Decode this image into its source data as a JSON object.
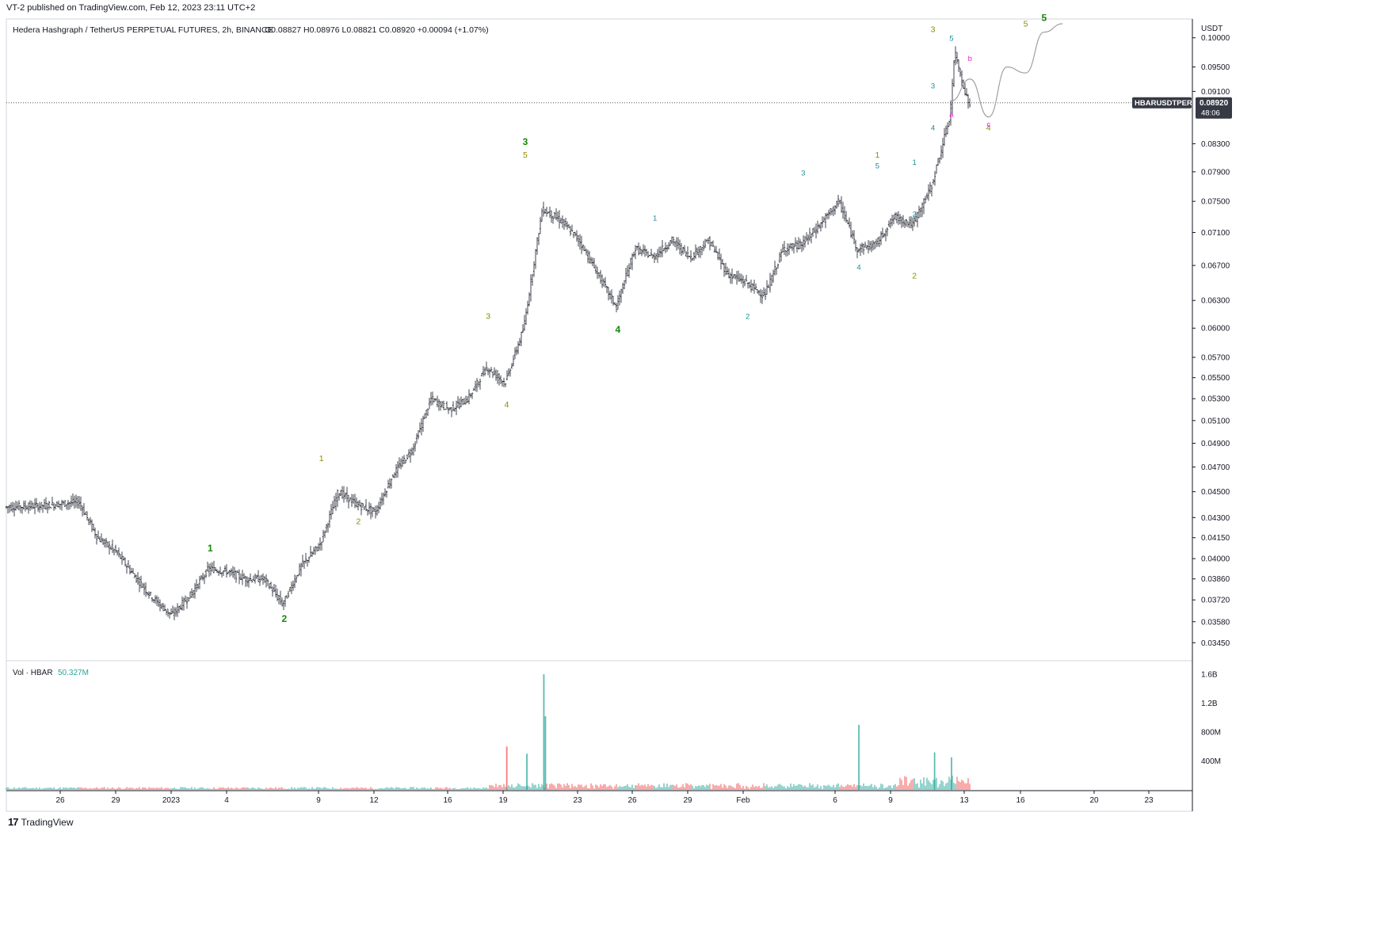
{
  "publication": {
    "text": "VT-2 published on TradingView.com, Feb 12, 2023 23:11 UTC+2"
  },
  "header": {
    "symbol_text": "Hedera Hashgraph / TetherUS PERPETUAL FUTURES, 2h, BINANCE",
    "ohlc": [
      {
        "label": "O",
        "value": "0.08827"
      },
      {
        "label": "H",
        "value": "0.08976"
      },
      {
        "label": "L",
        "value": "0.08821"
      },
      {
        "label": "C",
        "value": "0.08920"
      }
    ],
    "change": "+0.00094 (+1.07%)"
  },
  "price_axis": {
    "unit": "USDT",
    "ticks": [
      "0.10000",
      "0.09500",
      "0.09100",
      "0.08300",
      "0.07900",
      "0.07500",
      "0.07100",
      "0.06700",
      "0.06300",
      "0.06000",
      "0.05700",
      "0.05500",
      "0.05300",
      "0.05100",
      "0.04900",
      "0.04700",
      "0.04500",
      "0.04300",
      "0.04150",
      "0.04000",
      "0.03860",
      "0.03720",
      "0.03580",
      "0.03450"
    ]
  },
  "price_tag": {
    "symbol": "HBARUSDTPERP",
    "price": "0.08920",
    "countdown": "48:06",
    "value": 0.0892
  },
  "volume_panel": {
    "label": "Vol · HBAR",
    "value": "50.327M",
    "ticks": [
      "1.6B",
      "1.2B",
      "800M",
      "400M"
    ],
    "up_color": "#26a69a",
    "down_color": "#ef5350"
  },
  "time_axis": {
    "ticks": [
      "26",
      "29",
      "2023",
      "4",
      "9",
      "12",
      "16",
      "19",
      "23",
      "26",
      "29",
      "Feb",
      "6",
      "9",
      "13",
      "16",
      "20",
      "23"
    ]
  },
  "brand": {
    "name": "TradingView",
    "icon": "tradingview-logo-icon"
  },
  "colors": {
    "candle": "#131722",
    "wave_primary": "#138808",
    "wave_intermediate": "#8b8b00",
    "wave_minor": "#1b8c9c",
    "wave_abc": "#e91ed9",
    "projection": "#a0a0a0",
    "tag_bg": "#363a45"
  },
  "chart_data": [
    {
      "type": "candlestick",
      "title": "",
      "xlabel": "",
      "ylabel": "USDT",
      "x_range": [
        "2022-12-23",
        "2023-02-25"
      ],
      "ylim": [
        0.0338,
        0.1025
      ],
      "y_scale": "log",
      "grid": false,
      "price_path": [
        [
          "2022-12-23",
          0.0438
        ],
        [
          "2022-12-25",
          0.0439
        ],
        [
          "2022-12-27",
          0.0442
        ],
        [
          "2022-12-28",
          0.0415
        ],
        [
          "2022-12-29",
          0.0405
        ],
        [
          "2022-12-30",
          0.0388
        ],
        [
          "2022-12-31",
          0.0373
        ],
        [
          "2023-01-01",
          0.0362
        ],
        [
          "2023-01-02",
          0.0375
        ],
        [
          "2023-01-03",
          0.0393
        ],
        [
          "2023-01-04",
          0.0391
        ],
        [
          "2023-01-05",
          0.0386
        ],
        [
          "2023-01-06",
          0.0386
        ],
        [
          "2023-01-07",
          0.0369
        ],
        [
          "2023-01-08",
          0.0395
        ],
        [
          "2023-01-09",
          0.041
        ],
        [
          "2023-01-10",
          0.045
        ],
        [
          "2023-01-11",
          0.044
        ],
        [
          "2023-01-12",
          0.0434
        ],
        [
          "2023-01-13",
          0.0465
        ],
        [
          "2023-01-14",
          0.0485
        ],
        [
          "2023-01-15",
          0.053
        ],
        [
          "2023-01-16",
          0.052
        ],
        [
          "2023-01-17",
          0.053
        ],
        [
          "2023-01-18",
          0.056
        ],
        [
          "2023-01-19",
          0.0545
        ],
        [
          "2023-01-20",
          0.06
        ],
        [
          "2023-01-21",
          0.074
        ],
        [
          "2023-01-22",
          0.0725
        ],
        [
          "2023-01-23",
          0.07
        ],
        [
          "2023-01-24",
          0.066
        ],
        [
          "2023-01-25",
          0.0623
        ],
        [
          "2023-01-26",
          0.069
        ],
        [
          "2023-01-27",
          0.068
        ],
        [
          "2023-01-28",
          0.07
        ],
        [
          "2023-01-29",
          0.068
        ],
        [
          "2023-01-30",
          0.07
        ],
        [
          "2023-01-31",
          0.066
        ],
        [
          "2023-02-01",
          0.065
        ],
        [
          "2023-02-02",
          0.0635
        ],
        [
          "2023-02-03",
          0.069
        ],
        [
          "2023-02-04",
          0.0695
        ],
        [
          "2023-02-05",
          0.072
        ],
        [
          "2023-02-06",
          0.075
        ],
        [
          "2023-02-07",
          0.069
        ],
        [
          "2023-02-08",
          0.0695
        ],
        [
          "2023-02-09",
          0.073
        ],
        [
          "2023-02-10",
          0.072
        ],
        [
          "2023-02-11",
          0.077
        ],
        [
          "2023-02-12",
          0.087
        ],
        [
          "2023-02-12",
          0.0975
        ],
        [
          "2023-02-13",
          0.089
        ]
      ],
      "wave_labels": [
        {
          "text": "1",
          "degree": "primary",
          "x": "2023-01-03",
          "y": 0.0405
        },
        {
          "text": "2",
          "degree": "primary",
          "x": "2023-01-07",
          "y": 0.0358
        },
        {
          "text": "3",
          "degree": "primary",
          "x": "2023-01-20",
          "y": 0.0828
        },
        {
          "text": "4",
          "degree": "primary",
          "x": "2023-01-25",
          "y": 0.0595
        },
        {
          "text": "5",
          "degree": "primary",
          "x": "2023-02-17",
          "y": 0.103
        },
        {
          "text": "1",
          "degree": "intermediate",
          "x": "2023-01-09",
          "y": 0.0475
        },
        {
          "text": "2",
          "degree": "intermediate",
          "x": "2023-01-11",
          "y": 0.0425
        },
        {
          "text": "3",
          "degree": "intermediate",
          "x": "2023-01-18",
          "y": 0.061
        },
        {
          "text": "4",
          "degree": "intermediate",
          "x": "2023-01-19",
          "y": 0.0522
        },
        {
          "text": "5",
          "degree": "intermediate",
          "x": "2023-01-20",
          "y": 0.081
        },
        {
          "text": "1",
          "degree": "intermediate",
          "x": "2023-02-08",
          "y": 0.081
        },
        {
          "text": "2",
          "degree": "intermediate",
          "x": "2023-02-10",
          "y": 0.0655
        },
        {
          "text": "3",
          "degree": "intermediate",
          "x": "2023-02-11",
          "y": 0.101
        },
        {
          "text": "4",
          "degree": "intermediate",
          "x": "2023-02-14",
          "y": 0.085
        },
        {
          "text": "5",
          "degree": "intermediate",
          "x": "2023-02-16",
          "y": 0.102
        },
        {
          "text": "1",
          "degree": "minor",
          "x": "2023-01-27",
          "y": 0.0725
        },
        {
          "text": "2",
          "degree": "minor",
          "x": "2023-02-01",
          "y": 0.061
        },
        {
          "text": "3",
          "degree": "minor",
          "x": "2023-02-04",
          "y": 0.0785
        },
        {
          "text": "4",
          "degree": "minor",
          "x": "2023-02-07",
          "y": 0.0665
        },
        {
          "text": "5",
          "degree": "minor",
          "x": "2023-02-08",
          "y": 0.0795
        },
        {
          "text": "1",
          "degree": "minor",
          "x": "2023-02-10",
          "y": 0.08
        },
        {
          "text": "2",
          "degree": "minor",
          "x": "2023-02-10",
          "y": 0.073
        },
        {
          "text": "3",
          "degree": "minor",
          "x": "2023-02-11",
          "y": 0.0915
        },
        {
          "text": "4",
          "degree": "minor",
          "x": "2023-02-11",
          "y": 0.085
        },
        {
          "text": "5",
          "degree": "minor",
          "x": "2023-02-12",
          "y": 0.0995
        },
        {
          "text": "a",
          "degree": "abc",
          "x": "2023-02-12",
          "y": 0.087
        },
        {
          "text": "b",
          "degree": "abc",
          "x": "2023-02-13",
          "y": 0.096
        },
        {
          "text": "c",
          "degree": "abc",
          "x": "2023-02-14",
          "y": 0.0855
        }
      ],
      "projection_path": [
        [
          "2023-02-12",
          0.0895
        ],
        [
          "2023-02-13",
          0.093
        ],
        [
          "2023-02-14",
          0.087
        ],
        [
          "2023-02-15",
          0.095
        ],
        [
          "2023-02-16",
          0.094
        ],
        [
          "2023-02-17",
          0.101
        ],
        [
          "2023-02-18",
          0.1025
        ]
      ]
    },
    {
      "type": "bar",
      "title": "Vol · HBAR",
      "ylim": [
        0,
        1.7
      ],
      "y_unit": "B",
      "spikes": [
        {
          "x": "2023-01-19",
          "value": 0.6,
          "direction": "down"
        },
        {
          "x": "2023-01-20",
          "value": 0.5,
          "direction": "up"
        },
        {
          "x": "2023-01-21",
          "value": 1.6,
          "direction": "up"
        },
        {
          "x": "2023-01-21",
          "value": 1.02,
          "direction": "up"
        },
        {
          "x": "2023-02-07",
          "value": 0.9,
          "direction": "up"
        },
        {
          "x": "2023-02-11",
          "value": 0.52,
          "direction": "up"
        },
        {
          "x": "2023-02-12",
          "value": 0.45,
          "direction": "up"
        }
      ]
    }
  ]
}
